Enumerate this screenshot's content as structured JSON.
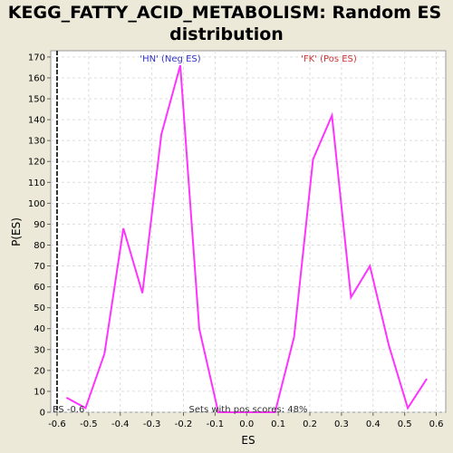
{
  "chart_data": {
    "type": "line",
    "title_line1": "KEGG_FATTY_ACID_METABOLISM: Random ES",
    "title_line2": "distribution",
    "xlabel": "ES",
    "ylabel": "P(ES)",
    "xlim": [
      -0.62,
      0.63
    ],
    "ylim": [
      0,
      173
    ],
    "x_ticks": [
      -0.6,
      -0.5,
      -0.4,
      -0.3,
      -0.2,
      -0.1,
      0.0,
      0.1,
      0.2,
      0.3,
      0.4,
      0.5,
      0.6
    ],
    "x_tick_labels": [
      "-0.6",
      "-0.5",
      "-0.4",
      "-0.3",
      "-0.2",
      "-0.1",
      "0.0",
      "0.1",
      "0.2",
      "0.3",
      "0.4",
      "0.5",
      "0.6"
    ],
    "y_ticks": [
      0,
      10,
      20,
      30,
      40,
      50,
      60,
      70,
      80,
      90,
      100,
      110,
      120,
      130,
      140,
      150,
      160,
      170
    ],
    "grid": true,
    "series": [
      {
        "color": "#FF33FF",
        "x": [
          -0.57,
          -0.51,
          -0.45,
          -0.39,
          -0.33,
          -0.27,
          -0.21,
          -0.15,
          -0.09,
          -0.03,
          0.03,
          0.09,
          0.15,
          0.21,
          0.27,
          0.33,
          0.39,
          0.45,
          0.51,
          0.57
        ],
        "y": [
          7,
          2,
          28,
          88,
          57,
          133,
          166,
          40,
          0,
          0,
          0,
          0,
          36,
          121,
          142,
          55,
          70,
          32,
          2,
          16
        ]
      }
    ],
    "marker": {
      "x": -0.6,
      "label": "ES -0.6",
      "color": "#000000"
    },
    "annotations": {
      "neg_label": "'HN' (Neg ES)",
      "neg_color": "#3333CC",
      "pos_label": "'FK' (Pos ES)",
      "pos_color": "#CC3333",
      "sets_label": "Sets with pos scores: 48%"
    }
  }
}
